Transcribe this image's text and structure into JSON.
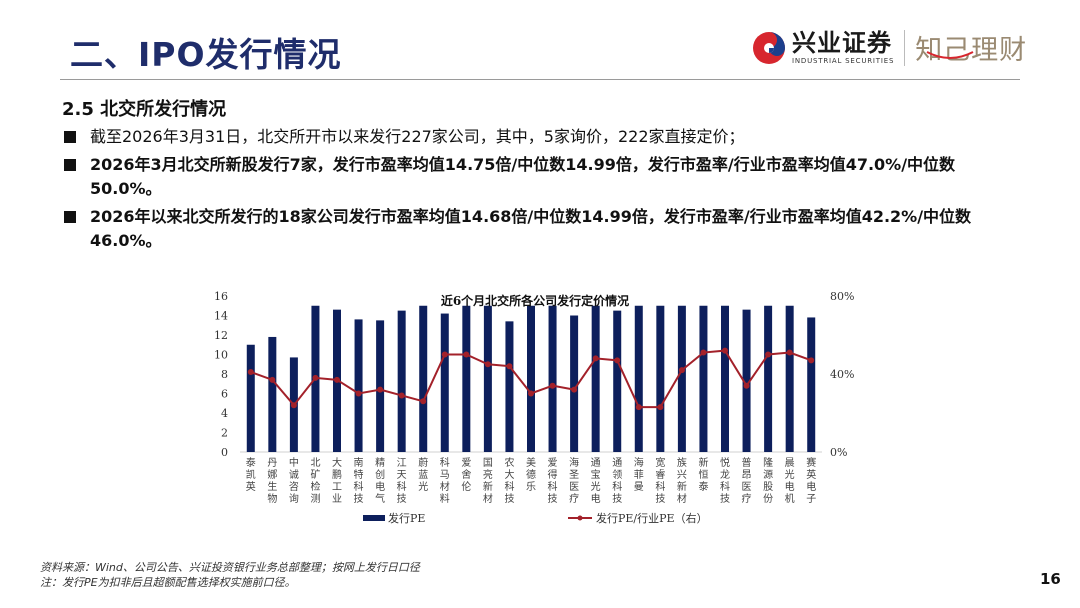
{
  "header": {
    "title": "二、IPO发行情况",
    "brand_cn": "兴业证券",
    "brand_en": "INDUSTRIAL SECURITIES",
    "brand_sub": "知己理财"
  },
  "section": {
    "heading": "2.5 北交所发行情况",
    "bullets": [
      "截至2026年3月31日，北交所开市以来发行227家公司，其中，5家询价，222家直接定价；",
      "2026年3月北交所新股发行7家，发行市盈率均值14.75倍/中位数14.99倍，发行市盈率/行业市盈率均值47.0%/中位数50.0%。",
      "2026年以来北交所发行的18家公司发行市盈率均值14.68倍/中位数14.99倍，发行市盈率/行业市盈率均值42.2%/中位数46.0%。"
    ]
  },
  "footer": {
    "source": "资料来源：Wind、公司公告、兴证投资银行业务总部整理；按网上发行日口径",
    "note": "注：发行PE为扣非后且超额配售选择权实施前口径。",
    "page_number": "16"
  },
  "colors": {
    "title": "#1f2d6b",
    "bar": "#0d1f5c",
    "line": "#a3212a",
    "brand_red": "#d7262e",
    "brand_blue": "#1c3f8c"
  },
  "chart_data": {
    "type": "bar",
    "title": "近6个月北交所各公司发行定价情况",
    "xlabel": "",
    "ylabel": "",
    "ylim": [
      0,
      16
    ],
    "y_ticks": [
      "0",
      "2",
      "4",
      "6",
      "8",
      "10",
      "12",
      "14",
      "16"
    ],
    "y2lim": [
      0,
      80
    ],
    "y2_ticks": [
      "0%",
      "40%",
      "80%"
    ],
    "grid": false,
    "legend_position": "bottom",
    "categories": [
      "泰凯英",
      "丹娜生物",
      "中诚咨询",
      "北矿检测",
      "大鹏工业",
      "南特科技",
      "精创电气",
      "江天科技",
      "蔚蓝光",
      "科马材料",
      "爱舍伦",
      "国亮新材",
      "农大科技",
      "美德乐",
      "爱得科技",
      "海圣医疗",
      "通宝光电",
      "通领科技",
      "海菲曼",
      "宽睿科技",
      "族兴新材",
      "新恒泰",
      "悦龙科技",
      "普昂医疗",
      "隆源股份",
      "晨光电机",
      "赛英电子"
    ],
    "series": [
      {
        "name": "发行PE",
        "type": "bar",
        "axis": "left",
        "values": [
          11.0,
          11.8,
          9.7,
          15.0,
          14.6,
          13.6,
          13.5,
          14.5,
          15.0,
          14.2,
          15.0,
          15.0,
          13.4,
          15.0,
          15.0,
          14.0,
          15.0,
          14.5,
          15.0,
          15.0,
          15.0,
          15.0,
          15.0,
          14.6,
          15.0,
          15.0,
          13.8
        ]
      },
      {
        "name": "发行PE/行业PE（右）",
        "type": "line",
        "axis": "right",
        "values": [
          41,
          37,
          24,
          38,
          37,
          30,
          32,
          29,
          26,
          50,
          50,
          45,
          44,
          30,
          34,
          32,
          48,
          47,
          23,
          23,
          42,
          51,
          52,
          34,
          50,
          51,
          47
        ]
      }
    ]
  }
}
